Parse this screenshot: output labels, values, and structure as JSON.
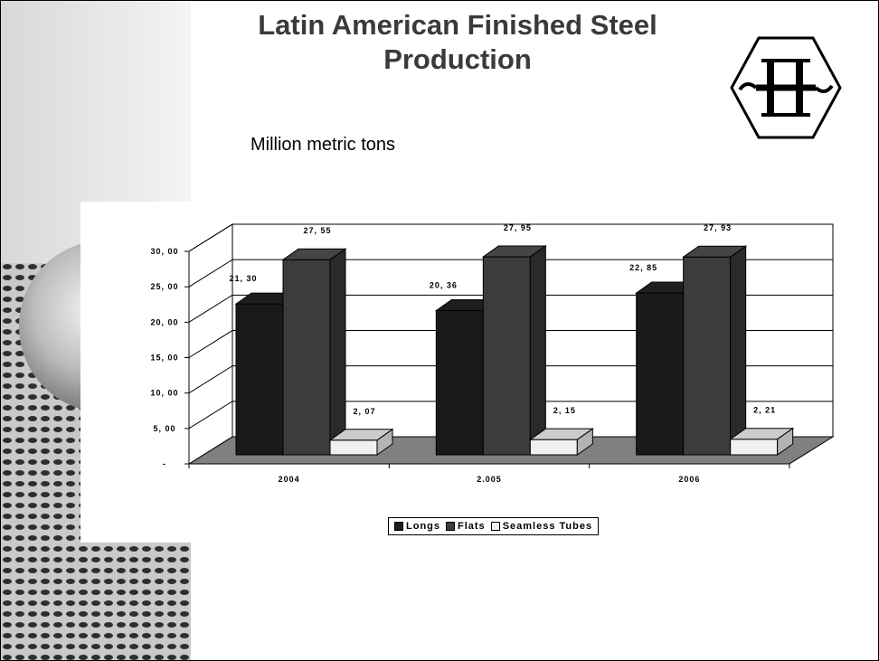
{
  "slide": {
    "title_line1": "Latin American Finished Steel",
    "title_line2": "Production",
    "subtitle": "Million metric tons"
  },
  "colors": {
    "longs": "#1a1a1a",
    "flats": "#3c3c3c",
    "seamless_tubes": "#f0f0f0",
    "floor": "#808080"
  },
  "chart_data": {
    "type": "bar",
    "categories": [
      "2004",
      "2.005",
      "2006"
    ],
    "series": [
      {
        "name": "Longs",
        "values": [
          21.3,
          20.36,
          22.85
        ],
        "labels": [
          "21, 30",
          "20, 36",
          "22, 85"
        ]
      },
      {
        "name": "Flats",
        "values": [
          27.55,
          27.95,
          27.93
        ],
        "labels": [
          "27, 55",
          "27, 95",
          "27, 93"
        ]
      },
      {
        "name": "Seamless Tubes",
        "values": [
          2.07,
          2.15,
          2.21
        ],
        "labels": [
          "2, 07",
          "2, 15",
          "2, 21"
        ]
      }
    ],
    "y_ticks": [
      "-",
      "5, 00",
      "10, 00",
      "15, 00",
      "20, 00",
      "25, 00",
      "30, 00"
    ],
    "ylim": [
      0,
      30
    ],
    "grid": true,
    "legend": "bottom",
    "three_d": true
  }
}
